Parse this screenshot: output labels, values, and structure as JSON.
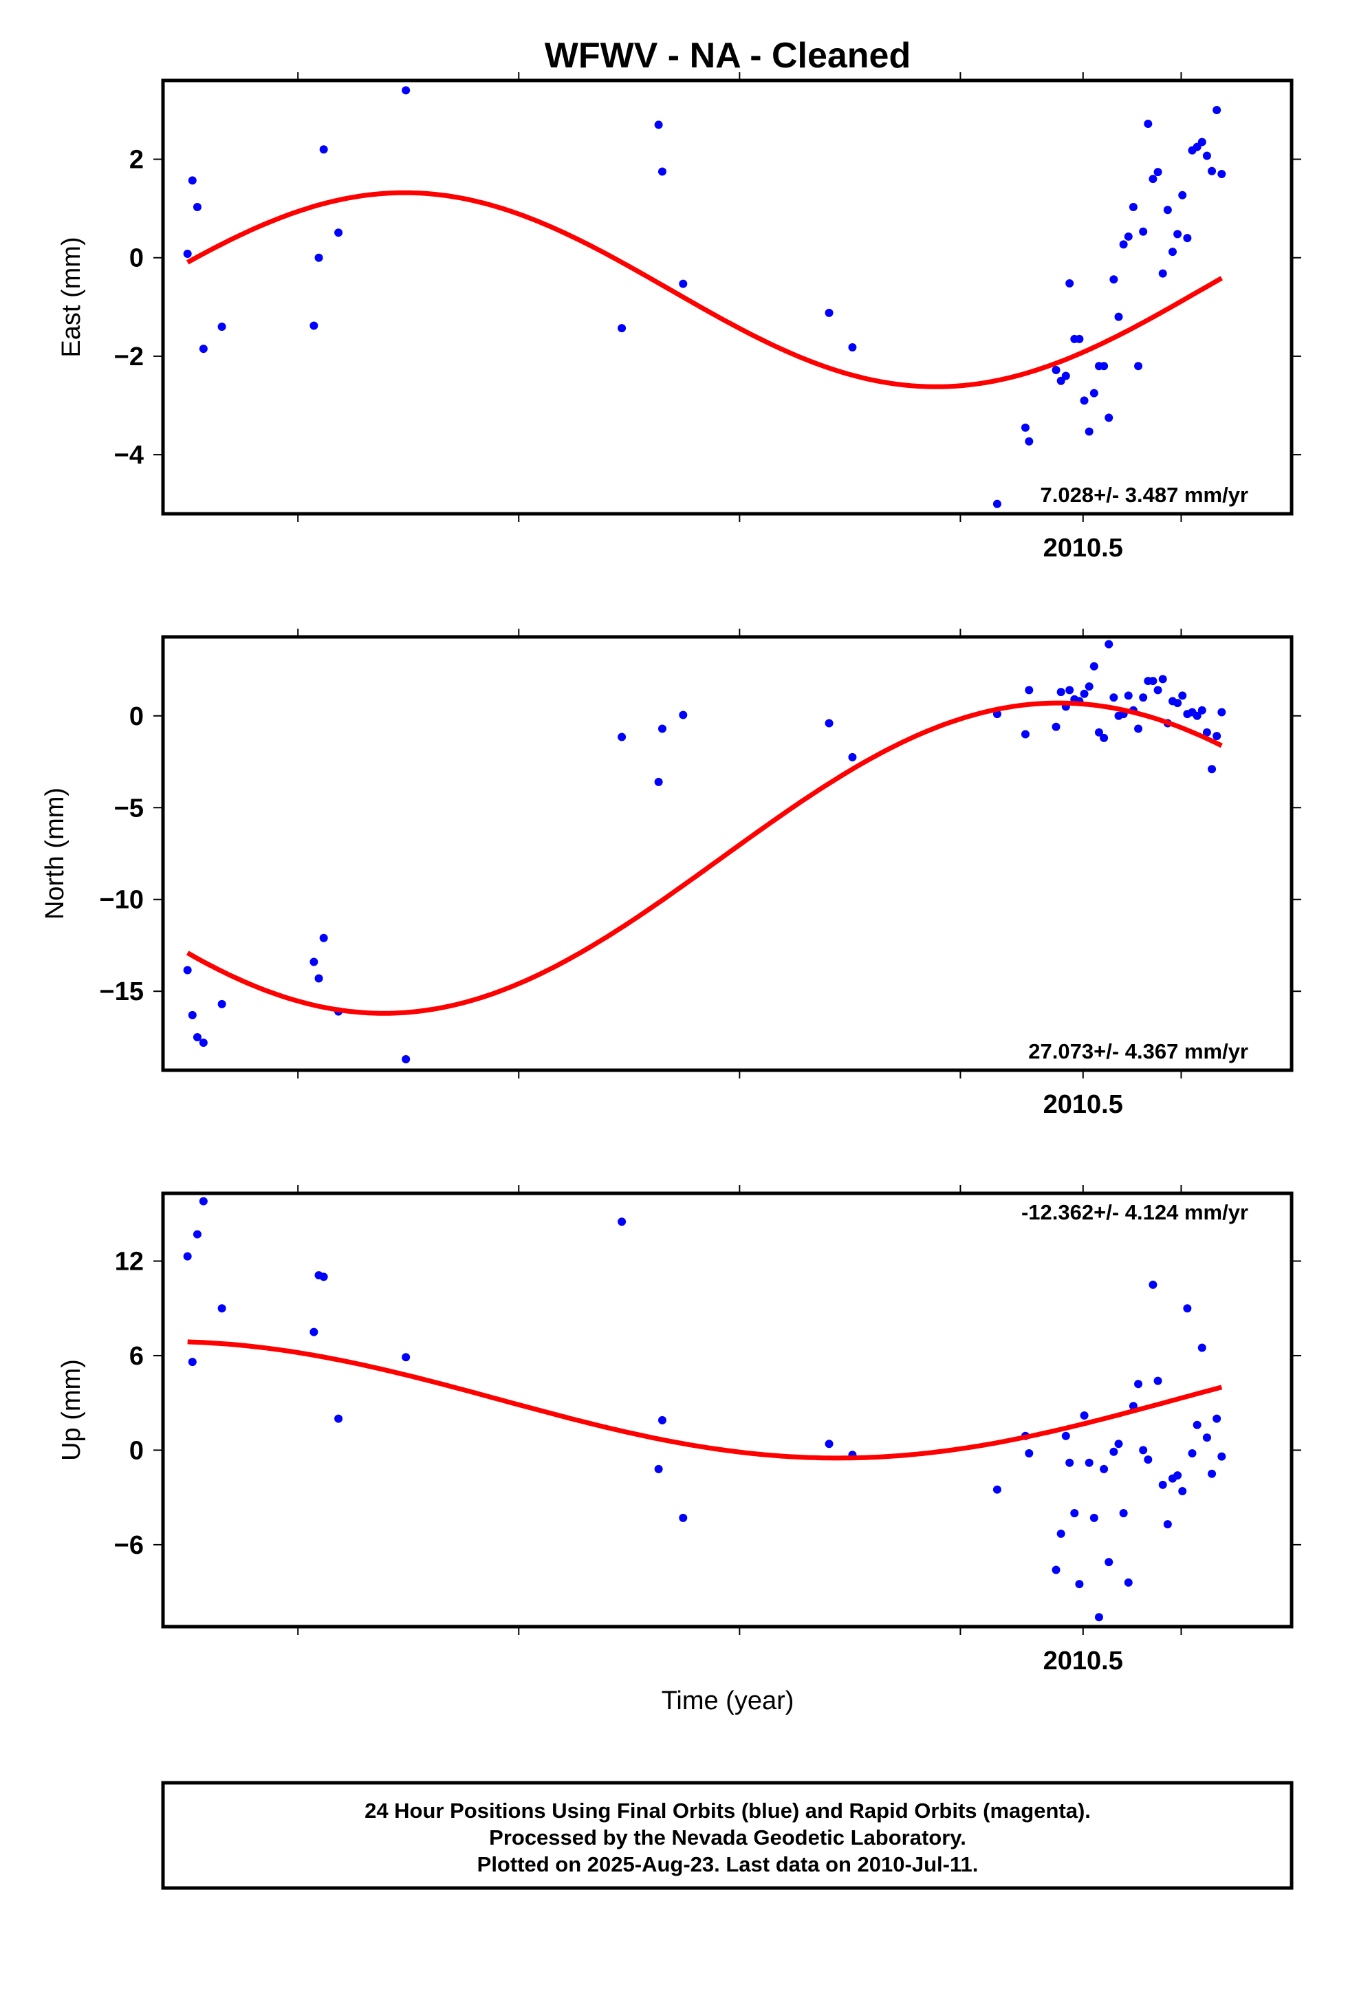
{
  "title": "WFWV  - NA - Cleaned",
  "xlabel": "Time (year)",
  "footer": [
    "24 Hour Positions Using Final Orbits (blue) and Rapid Orbits (magenta).",
    "Processed by the Nevada Geodetic Laboratory.",
    "Plotted on 2025-Aug-23. Last data on 2010-Jul-11."
  ],
  "colors": {
    "points": "#0000ff",
    "fit": "#ff0000",
    "axes": "#000000"
  },
  "chart_data": [
    {
      "type": "scatter",
      "name": "east",
      "ylabel": "East (mm)",
      "rate_label": "7.028+/- 3.487 mm/yr",
      "xlim": [
        2009.75,
        2010.67
      ],
      "ylim": [
        -5.2,
        3.6
      ],
      "yticks": [
        -4,
        -2,
        0,
        2
      ],
      "xticks": [
        2009.86,
        2010.04,
        2010.22,
        2010.4,
        2010.5,
        2010.58
      ],
      "xtick_labels": [
        {
          "x": 2010.5,
          "label": "2010.5"
        }
      ],
      "points": {
        "x": [
          2009.77,
          2009.774,
          2009.778,
          2009.783,
          2009.798,
          2009.873,
          2009.877,
          2009.881,
          2009.893,
          2009.948,
          2010.124,
          2010.154,
          2010.157,
          2010.174,
          2010.293,
          2010.312,
          2010.43,
          2010.453,
          2010.456,
          2010.478,
          2010.482,
          2010.486,
          2010.489,
          2010.493,
          2010.497,
          2010.501,
          2010.505,
          2010.509,
          2010.513,
          2010.517,
          2010.521,
          2010.525,
          2010.529,
          2010.533,
          2010.537,
          2010.541,
          2010.545,
          2010.549,
          2010.553,
          2010.557,
          2010.561,
          2010.565,
          2010.569,
          2010.573,
          2010.577,
          2010.581,
          2010.585,
          2010.589,
          2010.593,
          2010.597,
          2010.601,
          2010.605,
          2010.609,
          2010.613
        ],
        "y": [
          0.08,
          1.57,
          1.03,
          -1.85,
          -1.4,
          -1.38,
          0.0,
          2.2,
          0.51,
          3.4,
          -1.43,
          2.7,
          1.75,
          -0.53,
          -1.12,
          -1.82,
          -5.0,
          -3.45,
          -3.73,
          -2.28,
          -2.5,
          -2.4,
          -0.52,
          -1.65,
          -1.65,
          -2.9,
          -3.53,
          -2.75,
          -2.2,
          -2.2,
          -3.25,
          -0.44,
          -1.2,
          0.27,
          0.43,
          1.03,
          -2.2,
          0.53,
          2.72,
          1.6,
          1.74,
          -0.32,
          0.97,
          0.12,
          0.48,
          1.27,
          0.4,
          2.18,
          2.25,
          2.35,
          2.07,
          1.76,
          3.0,
          1.7
        ]
      },
      "fit": {
        "x_start": 2009.77,
        "x_end": 2010.613,
        "amplitude": 1.97,
        "offset": -0.65,
        "period": 0.866,
        "phase_peak": 2009.947
      }
    },
    {
      "type": "scatter",
      "name": "north",
      "ylabel": "North (mm)",
      "rate_label": "27.073+/- 4.367 mm/yr",
      "xlim": [
        2009.75,
        2010.67
      ],
      "ylim": [
        -19.3,
        4.3
      ],
      "yticks": [
        -15,
        -10,
        -5,
        0
      ],
      "xticks": [
        2009.86,
        2010.04,
        2010.22,
        2010.4,
        2010.5,
        2010.58
      ],
      "xtick_labels": [
        {
          "x": 2010.5,
          "label": "2010.5"
        }
      ],
      "points": {
        "x": [
          2009.77,
          2009.774,
          2009.778,
          2009.783,
          2009.798,
          2009.873,
          2009.877,
          2009.881,
          2009.893,
          2009.948,
          2010.124,
          2010.154,
          2010.157,
          2010.174,
          2010.293,
          2010.312,
          2010.43,
          2010.453,
          2010.456,
          2010.478,
          2010.482,
          2010.486,
          2010.489,
          2010.493,
          2010.497,
          2010.501,
          2010.505,
          2010.509,
          2010.513,
          2010.517,
          2010.521,
          2010.525,
          2010.529,
          2010.533,
          2010.537,
          2010.541,
          2010.545,
          2010.549,
          2010.553,
          2010.557,
          2010.561,
          2010.565,
          2010.569,
          2010.573,
          2010.577,
          2010.581,
          2010.585,
          2010.589,
          2010.593,
          2010.597,
          2010.601,
          2010.605,
          2010.609,
          2010.613
        ],
        "y": [
          -13.85,
          -16.3,
          -17.5,
          -17.8,
          -15.7,
          -13.4,
          -14.3,
          -12.1,
          -16.1,
          -18.7,
          -1.15,
          -3.6,
          -0.7,
          0.05,
          -0.4,
          -2.25,
          0.1,
          -1.0,
          1.4,
          -0.6,
          1.3,
          0.5,
          1.4,
          0.9,
          0.8,
          1.2,
          1.6,
          2.7,
          -0.9,
          -1.2,
          3.9,
          1.0,
          0.0,
          0.1,
          1.1,
          0.3,
          -0.7,
          1.0,
          1.9,
          1.9,
          1.4,
          2.0,
          -0.4,
          0.8,
          0.7,
          1.1,
          0.1,
          0.2,
          0.0,
          0.3,
          -0.9,
          -2.9,
          -1.1,
          0.2
        ]
      },
      "fit": {
        "x_start": 2009.77,
        "x_end": 2010.613,
        "amplitude": 8.45,
        "offset": -7.75,
        "period": 1.1,
        "phase_peak": 2010.48
      }
    },
    {
      "type": "scatter",
      "name": "up",
      "ylabel": "Up (mm)",
      "rate_label": "-12.362+/- 4.124 mm/yr",
      "xlim": [
        2009.75,
        2010.67
      ],
      "ylim": [
        -11.2,
        16.3
      ],
      "yticks": [
        -6,
        0,
        6,
        12
      ],
      "xticks": [
        2009.86,
        2010.04,
        2010.22,
        2010.4,
        2010.5,
        2010.58
      ],
      "xtick_labels": [
        {
          "x": 2010.5,
          "label": "2010.5"
        }
      ],
      "points": {
        "x": [
          2009.77,
          2009.774,
          2009.778,
          2009.783,
          2009.798,
          2009.873,
          2009.877,
          2009.881,
          2009.893,
          2009.948,
          2010.124,
          2010.154,
          2010.157,
          2010.174,
          2010.293,
          2010.312,
          2010.43,
          2010.453,
          2010.456,
          2010.478,
          2010.482,
          2010.486,
          2010.489,
          2010.493,
          2010.497,
          2010.501,
          2010.505,
          2010.509,
          2010.513,
          2010.517,
          2010.521,
          2010.525,
          2010.529,
          2010.533,
          2010.537,
          2010.541,
          2010.545,
          2010.549,
          2010.553,
          2010.557,
          2010.561,
          2010.565,
          2010.569,
          2010.573,
          2010.577,
          2010.581,
          2010.585,
          2010.589,
          2010.593,
          2010.597,
          2010.601,
          2010.605,
          2010.609,
          2010.613
        ],
        "y": [
          12.3,
          5.6,
          13.7,
          15.8,
          9.0,
          7.5,
          11.1,
          11.0,
          2.0,
          5.9,
          14.5,
          -1.2,
          1.9,
          -4.3,
          0.4,
          -0.3,
          -2.5,
          0.9,
          -0.2,
          -7.6,
          -5.3,
          0.9,
          -0.8,
          -4.0,
          -8.5,
          2.2,
          -0.8,
          -4.3,
          -10.6,
          -1.2,
          -7.1,
          -0.1,
          0.4,
          -4.0,
          -8.4,
          2.8,
          4.2,
          0.0,
          -0.6,
          10.5,
          4.4,
          -2.2,
          -4.7,
          -1.8,
          -1.6,
          -2.6,
          9.0,
          -0.2,
          1.6,
          6.5,
          0.8,
          -1.5,
          2.0,
          -0.4
        ]
      },
      "fit": {
        "x_start": 2009.77,
        "x_end": 2010.613,
        "amplitude": 3.7,
        "offset": 3.2,
        "period": 1.1,
        "phase_peak": 2009.75
      }
    }
  ]
}
